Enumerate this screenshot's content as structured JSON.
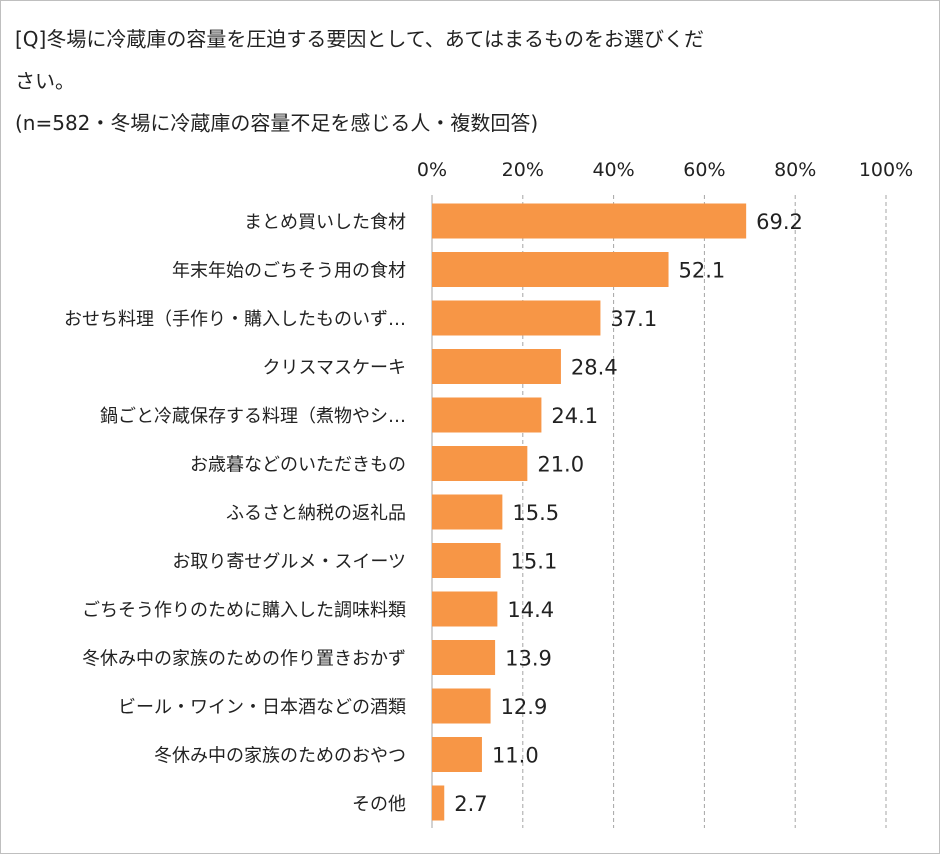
{
  "title": {
    "line1": "[Q]冬場に冷蔵庫の容量を圧迫する要因として、あてはまるものをお選びくだ",
    "line2": "さい。",
    "line3": "(n=582・冬場に冷蔵庫の容量不足を感じる人・複数回答)"
  },
  "colors": {
    "bar": "#f79646",
    "gridline": "#a6a6a6",
    "axis": "#a6a6a6",
    "text": "#222222"
  },
  "chart_data": {
    "type": "bar",
    "orientation": "horizontal",
    "categories": [
      "まとめ買いした食材",
      "年末年始のごちそう用の食材",
      "おせち料理（手作り・購入したものいず…",
      "クリスマスケーキ",
      "鍋ごと冷蔵保存する料理（煮物やシ…",
      "お歳暮などのいただきもの",
      "ふるさと納税の返礼品",
      "お取り寄せグルメ・スイーツ",
      "ごちそう作りのために購入した調味料類",
      "冬休み中の家族のための作り置きおかず",
      "ビール・ワイン・日本酒などの酒類",
      "冬休み中の家族のためのおやつ",
      "その他"
    ],
    "values": [
      69.2,
      52.1,
      37.1,
      28.4,
      24.1,
      21.0,
      15.5,
      15.1,
      14.4,
      13.9,
      12.9,
      11.0,
      2.7
    ],
    "value_labels": [
      "69.2",
      "52.1",
      "37.1",
      "28.4",
      "24.1",
      "21.0",
      "15.5",
      "15.1",
      "14.4",
      "13.9",
      "12.9",
      "11.0",
      "2.7"
    ],
    "xlim": [
      0,
      100
    ],
    "x_ticks": [
      0,
      20,
      40,
      60,
      80,
      100
    ],
    "x_tick_labels": [
      "0%",
      "20%",
      "40%",
      "60%",
      "80%",
      "100%"
    ],
    "x_axis_position": "top",
    "grid": "vertical dashed"
  }
}
